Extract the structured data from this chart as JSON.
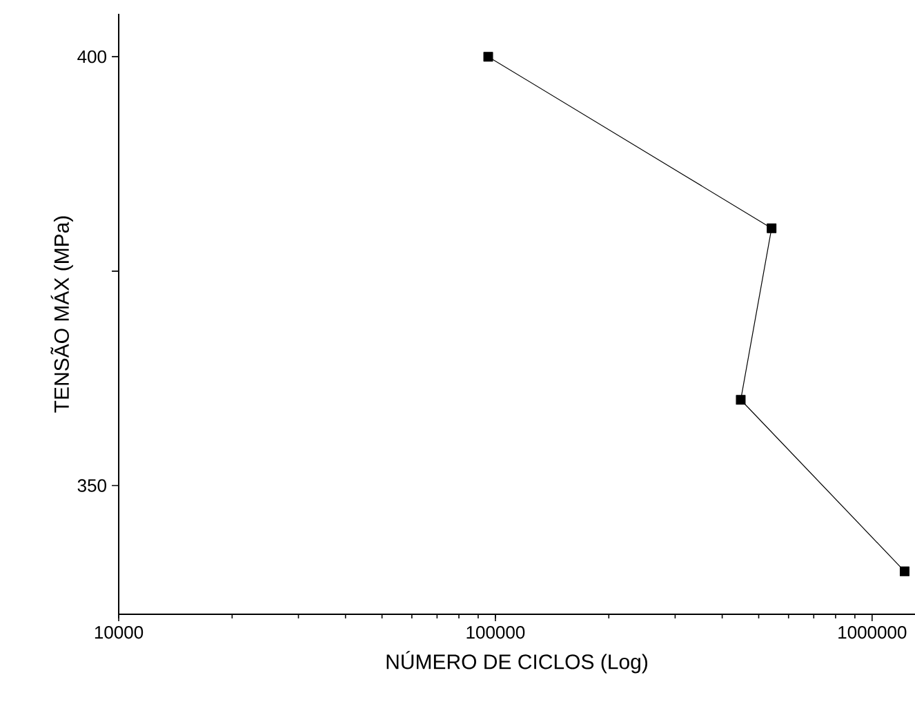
{
  "chart_data": {
    "type": "line",
    "xlabel": "NÚMERO DE CICLOS (Log)",
    "ylabel": "TENSÃO MÁX (MPa)",
    "x": [
      95700,
      541000,
      448000,
      1220000
    ],
    "series": [
      {
        "color": "#000000",
        "values": [
          400,
          380,
          360,
          340
        ]
      }
    ],
    "log": "x",
    "marker": "square",
    "line_style": "solid",
    "xlim": [
      10000,
      1300000
    ],
    "xticks": [
      10000,
      100000,
      1000000
    ],
    "ylim": [
      335,
      405
    ],
    "yticks": [
      350,
      {
        "value": 375,
        "label": null
      },
      400
    ]
  }
}
